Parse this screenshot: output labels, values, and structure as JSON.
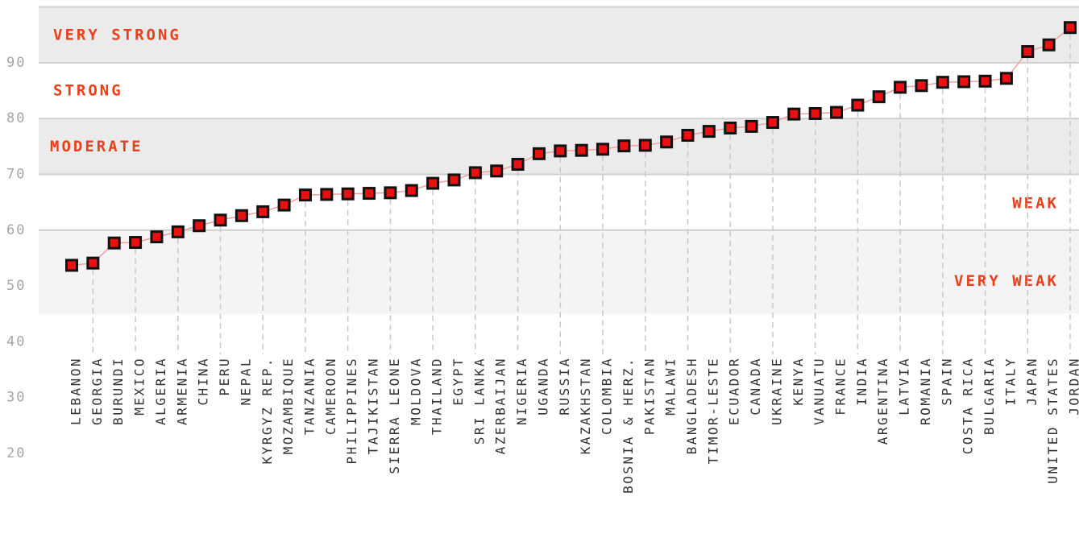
{
  "chart_data": {
    "type": "scatter",
    "title": "",
    "xlabel": "",
    "ylabel": "",
    "ylim": [
      20,
      100
    ],
    "yticks": [
      20,
      30,
      40,
      50,
      60,
      70,
      80,
      90
    ],
    "grid": true,
    "connected": true,
    "marker_color": "#e81010",
    "marker_edge": "#111111",
    "line_color": "#f0a0a0",
    "label_color": "#e8401c",
    "bands": [
      {
        "label": "VERY STRONG",
        "from": 90,
        "to": 100,
        "fill": "#ebebeb"
      },
      {
        "label": "STRONG",
        "from": 80,
        "to": 90,
        "fill": "#ffffff"
      },
      {
        "label": "MODERATE",
        "from": 70,
        "to": 80,
        "fill": "#ebebeb"
      },
      {
        "label": "WEAK",
        "from": 60,
        "to": 70,
        "fill": "#ffffff"
      },
      {
        "label": "VERY WEAK",
        "from": 45,
        "to": 60,
        "fill": "#f4f4f4"
      }
    ],
    "categories": [
      "LEBANON",
      "GEORGIA",
      "BURUNDI",
      "MEXICO",
      "ALGERIA",
      "ARMENIA",
      "CHINA",
      "PERU",
      "NEPAL",
      "KYRGYZ REP.",
      "MOZAMBIQUE",
      "TANZANIA",
      "CAMEROON",
      "PHILIPPINES",
      "TAJIKISTAN",
      "SIERRA LEONE",
      "MOLDOVA",
      "THAILAND",
      "EGYPT",
      "SRI LANKA",
      "AZERBAIJAN",
      "NIGERIA",
      "UGANDA",
      "RUSSIA",
      "KAZAKHSTAN",
      "COLOMBIA",
      "BOSNIA & HERZ.",
      "PAKISTAN",
      "MALAWI",
      "BANGLADESH",
      "TIMOR-LESTE",
      "ECUADOR",
      "CANADA",
      "UKRAINE",
      "KENYA",
      "VANUATU",
      "FRANCE",
      "INDIA",
      "ARGENTINA",
      "LATVIA",
      "ROMANIA",
      "SPAIN",
      "COSTA RICA",
      "BULGARIA",
      "ITALY",
      "JAPAN",
      "UNITED STATES",
      "JORDAN"
    ],
    "values": [
      53.7,
      54.1,
      57.7,
      57.8,
      58.8,
      59.7,
      60.8,
      61.8,
      62.6,
      63.3,
      64.5,
      66.3,
      66.4,
      66.5,
      66.6,
      66.7,
      67.1,
      68.4,
      69.0,
      70.3,
      70.6,
      71.8,
      73.7,
      74.2,
      74.3,
      74.5,
      75.1,
      75.2,
      75.8,
      77.0,
      77.7,
      78.3,
      78.6,
      79.3,
      80.8,
      80.9,
      81.1,
      82.4,
      83.9,
      85.6,
      85.9,
      86.5,
      86.6,
      86.7,
      87.2,
      92.0,
      93.2,
      96.3
    ]
  }
}
